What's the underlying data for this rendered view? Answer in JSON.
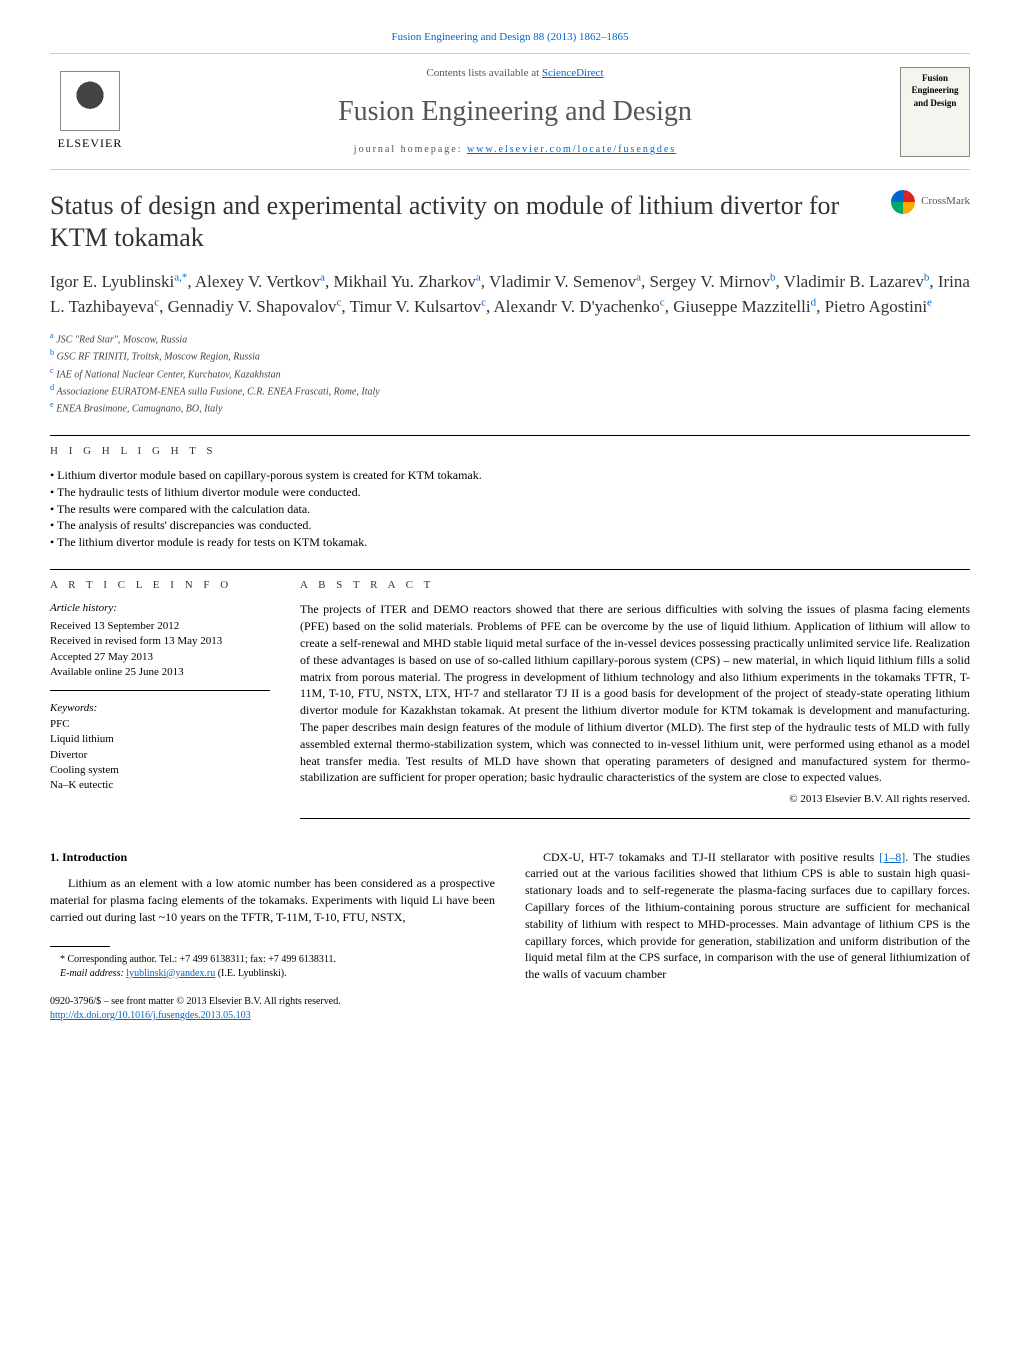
{
  "header": {
    "citation": "Fusion Engineering and Design 88 (2013) 1862–1865",
    "contents_prefix": "Contents lists available at ",
    "contents_link": "ScienceDirect",
    "journal_name": "Fusion Engineering and Design",
    "homepage_prefix": "journal homepage: ",
    "homepage_url": "www.elsevier.com/locate/fusengdes",
    "publisher": "ELSEVIER",
    "cover_title": "Fusion Engineering and Design"
  },
  "crossmark": {
    "label": "CrossMark"
  },
  "article": {
    "title": "Status of design and experimental activity on module of lithium divertor for KTM tokamak",
    "authors_html": "Igor E. Lyublinski<sup>a,*</sup>, Alexey V. Vertkov<sup>a</sup>, Mikhail Yu. Zharkov<sup>a</sup>, Vladimir V. Semenov<sup>a</sup>, Sergey V. Mirnov<sup>b</sup>, Vladimir B. Lazarev<sup>b</sup>, Irina L. Tazhibayeva<sup>c</sup>, Gennadiy V. Shapovalov<sup>c</sup>, Timur V. Kulsartov<sup>c</sup>, Alexandr V. D'yachenko<sup>c</sup>, Giuseppe Mazzitelli<sup>d</sup>, Pietro Agostini<sup>e</sup>",
    "affiliations": [
      {
        "sup": "a",
        "text": "JSC \"Red Star\", Moscow, Russia"
      },
      {
        "sup": "b",
        "text": "GSC RF TRINITI, Troitsk, Moscow Region, Russia"
      },
      {
        "sup": "c",
        "text": "IAE of National Nuclear Center, Kurchatov, Kazakhstan"
      },
      {
        "sup": "d",
        "text": "Associazione EURATOM-ENEA sulla Fusione, C.R. ENEA Frascati, Rome, Italy"
      },
      {
        "sup": "e",
        "text": "ENEA Brasimone, Camugnano, BO, Italy"
      }
    ]
  },
  "highlights": {
    "label": "H I G H L I G H T S",
    "items": [
      "Lithium divertor module based on capillary-porous system is created for KTM tokamak.",
      "The hydraulic tests of lithium divertor module were conducted.",
      "The results were compared with the calculation data.",
      "The analysis of results' discrepancies was conducted.",
      "The lithium divertor module is ready for tests on KTM tokamak."
    ]
  },
  "article_info": {
    "label": "A R T I C L E   I N F O",
    "history_label": "Article history:",
    "received": "Received 13 September 2012",
    "revised": "Received in revised form 13 May 2013",
    "accepted": "Accepted 27 May 2013",
    "online": "Available online 25 June 2013",
    "keywords_label": "Keywords:",
    "keywords": [
      "PFC",
      "Liquid lithium",
      "Divertor",
      "Cooling system",
      "Na–K eutectic"
    ]
  },
  "abstract": {
    "label": "A B S T R A C T",
    "text": "The projects of ITER and DEMO reactors showed that there are serious difficulties with solving the issues of plasma facing elements (PFE) based on the solid materials. Problems of PFE can be overcome by the use of liquid lithium. Application of lithium will allow to create a self-renewal and MHD stable liquid metal surface of the in-vessel devices possessing practically unlimited service life. Realization of these advantages is based on use of so-called lithium capillary-porous system (CPS) – new material, in which liquid lithium fills a solid matrix from porous material. The progress in development of lithium technology and also lithium experiments in the tokamaks TFTR, T-11M, T-10, FTU, NSTX, LTX, HT-7 and stellarator TJ II is a good basis for development of the project of steady-state operating lithium divertor module for Kazakhstan tokamak. At present the lithium divertor module for KTM tokamak is development and manufacturing. The paper describes main design features of the module of lithium divertor (MLD). The first step of the hydraulic tests of MLD with fully assembled external thermo-stabilization system, which was connected to in-vessel lithium unit, were performed using ethanol as a model heat transfer media. Test results of MLD have shown that operating parameters of designed and manufactured system for thermo-stabilization are sufficient for proper operation; basic hydraulic characteristics of the system are close to expected values.",
    "copyright": "© 2013 Elsevier B.V. All rights reserved."
  },
  "body": {
    "intro_heading": "1.  Introduction",
    "col1_para": "Lithium as an element with a low atomic number has been considered as a prospective material for plasma facing elements of the tokamaks. Experiments with liquid Li have been carried out during last ~10 years on the TFTR, T-11M, T-10, FTU, NSTX,",
    "col2_para_pre": "CDX-U, HT-7 tokamaks and TJ-II stellarator with positive results ",
    "col2_ref": "[1–8]",
    "col2_para_post": ". The studies carried out at the various facilities showed that lithium CPS is able to sustain high quasi-stationary loads and to self-regenerate the plasma-facing surfaces due to capillary forces. Capillary forces of the lithium-containing porous structure are sufficient for mechanical stability of lithium with respect to MHD-processes. Main advantage of lithium CPS is the capillary forces, which provide for generation, stabilization and uniform distribution of the liquid metal film at the CPS surface, in comparison with the use of general lithiumization of the walls of vacuum chamber"
  },
  "footnote": {
    "corresponding": "* Corresponding author. Tel.: +7 499 6138311; fax: +7 499 6138311.",
    "email_label": "E-mail address: ",
    "email": "lyublinski@yandex.ru",
    "email_suffix": " (I.E. Lyublinski)."
  },
  "bottom": {
    "issn_line": "0920-3796/$ – see front matter © 2013 Elsevier B.V. All rights reserved.",
    "doi": "http://dx.doi.org/10.1016/j.fusengdes.2013.05.103"
  },
  "colors": {
    "link": "#0066cc",
    "text": "#000000",
    "heading": "#333333",
    "rule": "#000000"
  }
}
